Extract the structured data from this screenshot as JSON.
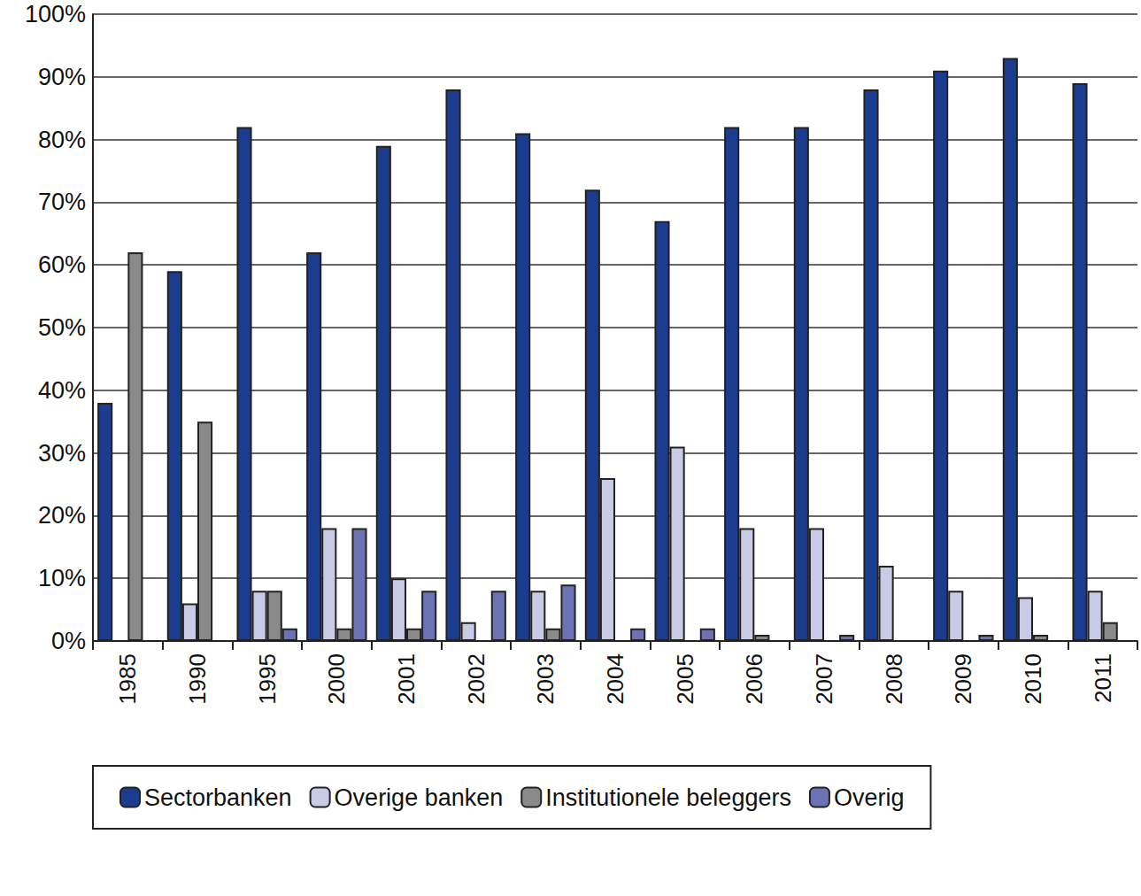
{
  "chart_data": {
    "type": "bar",
    "categories": [
      "1985",
      "1990",
      "1995",
      "2000",
      "2001",
      "2002",
      "2003",
      "2004",
      "2005",
      "2006",
      "2007",
      "2008",
      "2009",
      "2010",
      "2011"
    ],
    "series": [
      {
        "name": "Sectorbanken",
        "color": "#1c3d8f",
        "values": [
          38,
          59,
          82,
          62,
          79,
          88,
          81,
          72,
          67,
          82,
          82,
          88,
          91,
          93,
          89
        ]
      },
      {
        "name": "Overige banken",
        "color": "#c9cbe6",
        "values": [
          0,
          6,
          8,
          18,
          10,
          3,
          8,
          26,
          31,
          18,
          18,
          12,
          8,
          7,
          8
        ]
      },
      {
        "name": "Institutionele beleggers",
        "color": "#8a8a8a",
        "values": [
          62,
          35,
          8,
          2,
          2,
          0,
          2,
          0,
          0,
          1,
          0,
          0,
          0,
          1,
          3
        ]
      },
      {
        "name": "Overig",
        "color": "#6c73b5",
        "values": [
          0,
          0,
          2,
          18,
          8,
          8,
          9,
          2,
          2,
          0,
          1,
          0,
          1,
          0,
          0
        ]
      }
    ],
    "ylim": [
      0,
      100
    ],
    "yticks": [
      {
        "value": 0,
        "label": "0%"
      },
      {
        "value": 10,
        "label": "10%"
      },
      {
        "value": 20,
        "label": "20%"
      },
      {
        "value": 30,
        "label": "30%"
      },
      {
        "value": 40,
        "label": "40%"
      },
      {
        "value": 50,
        "label": "50%"
      },
      {
        "value": 60,
        "label": "60%"
      },
      {
        "value": 70,
        "label": "70%"
      },
      {
        "value": 80,
        "label": "80%"
      },
      {
        "value": 90,
        "label": "90%"
      },
      {
        "value": 100,
        "label": "100%"
      }
    ],
    "grid": true,
    "legend": "bottom"
  }
}
